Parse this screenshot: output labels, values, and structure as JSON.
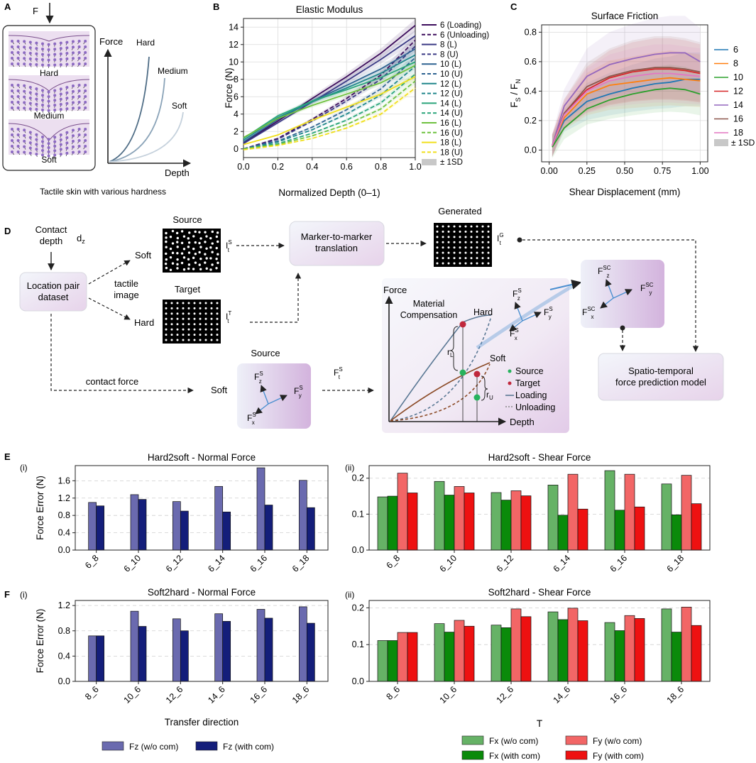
{
  "panel_letters": {
    "a": "A",
    "b": "B",
    "c": "C",
    "d": "D",
    "e": "E",
    "f": "F"
  },
  "sub_labels": {
    "ei": "(i)",
    "eii": "(ii)",
    "fi": "(i)",
    "fii": "(ii)"
  },
  "panelA": {
    "force_arrow": "F",
    "hard": "Hard",
    "medium": "Medium",
    "soft": "Soft",
    "ylabel": "Force",
    "xlabel": "Depth",
    "curve_hard": "Hard",
    "curve_medium": "Medium",
    "curve_soft": "Soft",
    "caption": "Tactile skin with various hardness",
    "colors": {
      "hard": "#4f6d86",
      "medium": "#8aa3b8",
      "soft": "#c5d1dc",
      "marker": "#8c6ac2",
      "skin": "#ecdff0"
    }
  },
  "panelD": {
    "contact_depth": "Contact\ndepth",
    "dz": "d",
    "dz_sub": "z",
    "location_pair": "Location pair\ndataset",
    "tactile_image": "tactile\nimage",
    "soft": "Soft",
    "hard": "Hard",
    "source": "Source",
    "target": "Target",
    "generated": "Generated",
    "its": "I",
    "its_sup": "S",
    "its_sub": "t",
    "itt_sup": "T",
    "itg_sup": "G",
    "m2m": "Marker-to-marker\ntranslation",
    "contact_force": "contact force",
    "source2": "Source",
    "soft2": "Soft",
    "fts": "F",
    "fts_sup": "S",
    "fts_sub": "t",
    "force_axis": "Force",
    "depth_axis": "Depth",
    "mat_comp": "Material\nCompensation",
    "hard_curve": "Hard",
    "soft_curve": "Soft",
    "rl": "r",
    "rl_sub": "L",
    "ru": "r",
    "ru_sub": "U",
    "legend_source": "Source",
    "legend_target": "Target",
    "legend_loading": "Loading",
    "legend_unloading": "Unloading",
    "fzs": "F",
    "fys": "F",
    "fxs": "F",
    "s_sup": "S",
    "z_sub": "z",
    "y_sub": "y",
    "x_sub": "x",
    "sc_sup": "SC",
    "spatio": "Spatio-temporal\nforce prediction model"
  },
  "chart_data": [
    {
      "id": "B",
      "type": "line",
      "title": "Elastic Modulus",
      "xlabel": "Normalized Depth (0–1)",
      "ylabel": "Force (N)",
      "xlim": [
        0,
        1
      ],
      "ylim": [
        -1,
        15
      ],
      "xticks": [
        "0.0",
        "0.2",
        "0.4",
        "0.6",
        "0.8",
        "1.0"
      ],
      "yticks": [
        "0",
        "2",
        "4",
        "6",
        "8",
        "10",
        "12",
        "14"
      ],
      "grid": true,
      "x": [
        0,
        0.2,
        0.4,
        0.6,
        0.8,
        1.0
      ],
      "series": [
        {
          "name": "6 (Loading)",
          "color": "#3d0d5c",
          "dash": false,
          "values": [
            0.7,
            3.2,
            5.8,
            8.3,
            11.0,
            14.2
          ]
        },
        {
          "name": "6 (Unloading)",
          "color": "#3d0d5c",
          "dash": true,
          "values": [
            0,
            1.2,
            3.4,
            5.8,
            8.5,
            12.5
          ]
        },
        {
          "name": "8 (L)",
          "color": "#3b3a85",
          "dash": false,
          "values": [
            0.6,
            3.0,
            5.4,
            7.8,
            10.3,
            13.0
          ]
        },
        {
          "name": "8 (U)",
          "color": "#3b3a85",
          "dash": true,
          "values": [
            0,
            1.1,
            3.2,
            5.5,
            8.0,
            11.8
          ]
        },
        {
          "name": "10 (L)",
          "color": "#2e6391",
          "dash": false,
          "values": [
            0.8,
            3.4,
            5.5,
            7.3,
            9.2,
            11.5
          ]
        },
        {
          "name": "10 (U)",
          "color": "#2e6391",
          "dash": true,
          "values": [
            0,
            0.9,
            2.5,
            4.5,
            6.9,
            10.5
          ]
        },
        {
          "name": "12 (L)",
          "color": "#21878c",
          "dash": false,
          "values": [
            1.0,
            3.6,
            5.4,
            7.0,
            8.7,
            10.8
          ]
        },
        {
          "name": "12 (U)",
          "color": "#21878c",
          "dash": true,
          "values": [
            0,
            0.8,
            2.2,
            4.0,
            6.2,
            9.5
          ]
        },
        {
          "name": "14 (L)",
          "color": "#2aa57a",
          "dash": false,
          "values": [
            1.2,
            3.8,
            5.5,
            6.8,
            8.2,
            10.0
          ]
        },
        {
          "name": "14 (U)",
          "color": "#2aa57a",
          "dash": true,
          "values": [
            0,
            0.6,
            1.8,
            3.3,
            5.3,
            8.6
          ]
        },
        {
          "name": "16 (L)",
          "color": "#6ec13f",
          "dash": false,
          "values": [
            1.3,
            3.5,
            5.0,
            6.3,
            7.6,
            9.6
          ]
        },
        {
          "name": "16 (U)",
          "color": "#6ec13f",
          "dash": true,
          "values": [
            0,
            0.5,
            1.5,
            2.8,
            4.6,
            7.8
          ]
        },
        {
          "name": "18 (L)",
          "color": "#f0df1c",
          "dash": false,
          "values": [
            0.5,
            1.6,
            3.3,
            4.8,
            6.3,
            8.3
          ]
        },
        {
          "name": "18 (U)",
          "color": "#f0df1c",
          "dash": true,
          "values": [
            -0.1,
            0.4,
            1.2,
            2.4,
            4.0,
            7.0
          ]
        }
      ],
      "sd_label": "± 1SD"
    },
    {
      "id": "C",
      "type": "line",
      "title": "Surface Friction",
      "xlabel": "Shear Displacement (mm)",
      "ylabel_main": "F",
      "ylabel_sub1": "S",
      "ylabel_sep": " / F",
      "ylabel_sub2": "N",
      "xlim": [
        -0.05,
        1.05
      ],
      "ylim": [
        -0.08,
        0.85
      ],
      "xticks": [
        "0.00",
        "0.25",
        "0.50",
        "0.75",
        "1.00"
      ],
      "yticks": [
        "0.0",
        "0.2",
        "0.4",
        "0.6",
        "0.8"
      ],
      "grid": true,
      "x": [
        0.02,
        0.1,
        0.25,
        0.4,
        0.55,
        0.7,
        0.8,
        0.9,
        1.0
      ],
      "series": [
        {
          "name": "6",
          "color": "#1f77b4",
          "values": [
            0.03,
            0.2,
            0.33,
            0.38,
            0.42,
            0.45,
            0.46,
            0.48,
            0.48
          ]
        },
        {
          "name": "8",
          "color": "#ff7f0e",
          "values": [
            0.03,
            0.22,
            0.38,
            0.44,
            0.46,
            0.48,
            0.49,
            0.48,
            0.47
          ]
        },
        {
          "name": "10",
          "color": "#2ca02c",
          "values": [
            0.02,
            0.15,
            0.28,
            0.34,
            0.38,
            0.41,
            0.42,
            0.41,
            0.38
          ]
        },
        {
          "name": "12",
          "color": "#d62728",
          "values": [
            0.03,
            0.25,
            0.41,
            0.49,
            0.53,
            0.55,
            0.55,
            0.54,
            0.52
          ]
        },
        {
          "name": "14",
          "color": "#9467bd",
          "values": [
            0.03,
            0.3,
            0.5,
            0.58,
            0.62,
            0.65,
            0.66,
            0.66,
            0.6
          ]
        },
        {
          "name": "16",
          "color": "#8c564b",
          "values": [
            0.03,
            0.25,
            0.43,
            0.5,
            0.54,
            0.56,
            0.56,
            0.55,
            0.53
          ]
        },
        {
          "name": "18",
          "color": "#e377c2",
          "values": [
            0.03,
            0.24,
            0.4,
            0.47,
            0.5,
            0.52,
            0.52,
            0.51,
            0.5
          ]
        }
      ],
      "sd_label": "± 1SD"
    },
    {
      "id": "E-i",
      "type": "bar",
      "title": "Hard2soft - Normal Force",
      "ylabel": "Force Error (N)",
      "ylim": [
        0,
        1.95
      ],
      "yticks": [
        "0.0",
        "0.4",
        "0.8",
        "1.2",
        "1.6"
      ],
      "categories": [
        "6_8",
        "6_10",
        "6_12",
        "6_14",
        "6_16",
        "6_18"
      ],
      "series": [
        {
          "name": "Fz (w/o com)",
          "color": "#6a6aaf",
          "values": [
            1.1,
            1.28,
            1.12,
            1.47,
            1.9,
            1.61
          ]
        },
        {
          "name": "Fz (with com)",
          "color": "#141e7a",
          "values": [
            1.02,
            1.17,
            0.9,
            0.88,
            1.04,
            0.98
          ]
        }
      ]
    },
    {
      "id": "E-ii",
      "type": "bar",
      "title": "Hard2soft - Shear Force",
      "ylim": [
        0,
        0.235
      ],
      "yticks": [
        "0.0",
        "0.1",
        "0.2"
      ],
      "categories": [
        "6_8",
        "6_10",
        "6_12",
        "6_14",
        "6_16",
        "6_18"
      ],
      "series": [
        {
          "name": "Fx (w/o com)",
          "color": "#66b266",
          "values": [
            0.148,
            0.191,
            0.16,
            0.181,
            0.221,
            0.184
          ]
        },
        {
          "name": "Fx (with com)",
          "color": "#0a8a0a",
          "values": [
            0.15,
            0.153,
            0.139,
            0.097,
            0.111,
            0.098
          ]
        },
        {
          "name": "Fy (w/o com)",
          "color": "#f26666",
          "values": [
            0.214,
            0.177,
            0.165,
            0.211,
            0.211,
            0.208
          ]
        },
        {
          "name": "Fy (with com)",
          "color": "#ee1111",
          "values": [
            0.159,
            0.159,
            0.151,
            0.114,
            0.12,
            0.129
          ]
        }
      ]
    },
    {
      "id": "F-i",
      "type": "bar",
      "title": "Soft2hard - Normal Force",
      "ylabel": "Force Error (N)",
      "xlabel": "Transfer direction",
      "ylim": [
        0,
        1.28
      ],
      "yticks": [
        "0.0",
        "0.4",
        "0.8",
        "1.2"
      ],
      "categories": [
        "8_6",
        "10_6",
        "12_6",
        "14_6",
        "16_6",
        "18_6"
      ],
      "series": [
        {
          "name": "Fz (w/o com)",
          "color": "#6a6aaf",
          "values": [
            0.72,
            1.11,
            0.99,
            1.07,
            1.14,
            1.18
          ]
        },
        {
          "name": "Fz (with com)",
          "color": "#141e7a",
          "values": [
            0.72,
            0.87,
            0.8,
            0.95,
            1.0,
            0.92
          ]
        }
      ]
    },
    {
      "id": "F-ii",
      "type": "bar",
      "title": "Soft2hard - Shear Force",
      "xlabel": "T",
      "ylim": [
        0,
        0.22
      ],
      "yticks": [
        "0.0",
        "0.1",
        "0.2"
      ],
      "categories": [
        "8_6",
        "10_6",
        "12_6",
        "14_6",
        "16_6",
        "18_6"
      ],
      "series": [
        {
          "name": "Fx (w/o com)",
          "color": "#66b266",
          "values": [
            0.111,
            0.157,
            0.153,
            0.189,
            0.16,
            0.197
          ]
        },
        {
          "name": "Fx (with com)",
          "color": "#0a8a0a",
          "values": [
            0.111,
            0.134,
            0.146,
            0.168,
            0.138,
            0.134
          ]
        },
        {
          "name": "Fy (w/o com)",
          "color": "#f26666",
          "values": [
            0.133,
            0.166,
            0.197,
            0.199,
            0.179,
            0.202
          ]
        },
        {
          "name": "Fy (with com)",
          "color": "#ee1111",
          "values": [
            0.133,
            0.15,
            0.176,
            0.165,
            0.171,
            0.152
          ]
        }
      ]
    }
  ],
  "legend_bottom": {
    "fz_wo": "Fz (w/o com)",
    "fz_with": "Fz (with com)",
    "fx_wo": "Fx (w/o com)",
    "fx_with": "Fx (with com)",
    "fy_wo": "Fy (w/o com)",
    "fy_with": "Fy (with com)"
  }
}
